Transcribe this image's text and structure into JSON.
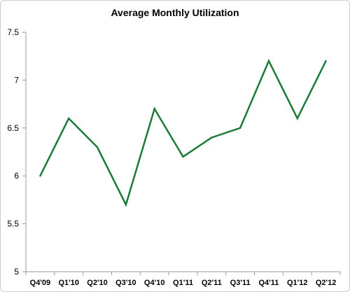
{
  "chart_data": {
    "type": "line",
    "title": "Average Monthly Utilization",
    "xlabel": "",
    "ylabel": "",
    "categories": [
      "Q4'09",
      "Q1'10",
      "Q2'10",
      "Q3'10",
      "Q4'10",
      "Q1'11",
      "Q2'11",
      "Q3'11",
      "Q4'11",
      "Q1'12",
      "Q2'12"
    ],
    "series": [
      {
        "values": [
          6.0,
          6.6,
          6.3,
          5.7,
          6.7,
          6.2,
          6.4,
          6.5,
          7.2,
          6.6,
          7.2
        ],
        "color": "#1b7a35"
      }
    ],
    "ylim": [
      5,
      7.5
    ],
    "yticks": [
      "5",
      "5.5",
      "6",
      "6.5",
      "7",
      "7.5"
    ],
    "grid": false,
    "legend": "none"
  }
}
